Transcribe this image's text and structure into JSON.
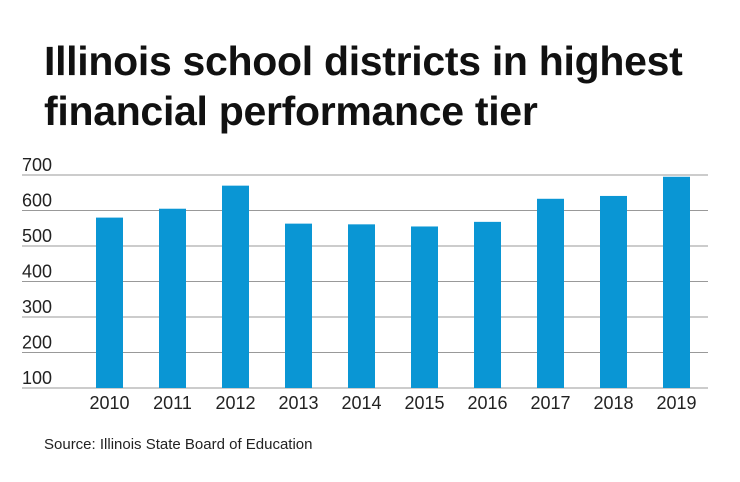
{
  "title": "Illinois school districts in highest financial performance tier",
  "source": "Source: Illinois State Board of Education",
  "chart_data": {
    "type": "bar",
    "title": "Illinois school districts in highest financial performance tier",
    "categories": [
      "2010",
      "2011",
      "2012",
      "2013",
      "2014",
      "2015",
      "2016",
      "2017",
      "2018",
      "2019"
    ],
    "values": [
      580,
      605,
      670,
      563,
      561,
      555,
      568,
      633,
      641,
      695
    ],
    "xlabel": "",
    "ylabel": "",
    "ylim": [
      100,
      700
    ],
    "yticks": [
      100,
      200,
      300,
      400,
      500,
      600,
      700
    ],
    "grid": true,
    "bar_color": "#0a96d4",
    "grid_color": "#999999"
  }
}
